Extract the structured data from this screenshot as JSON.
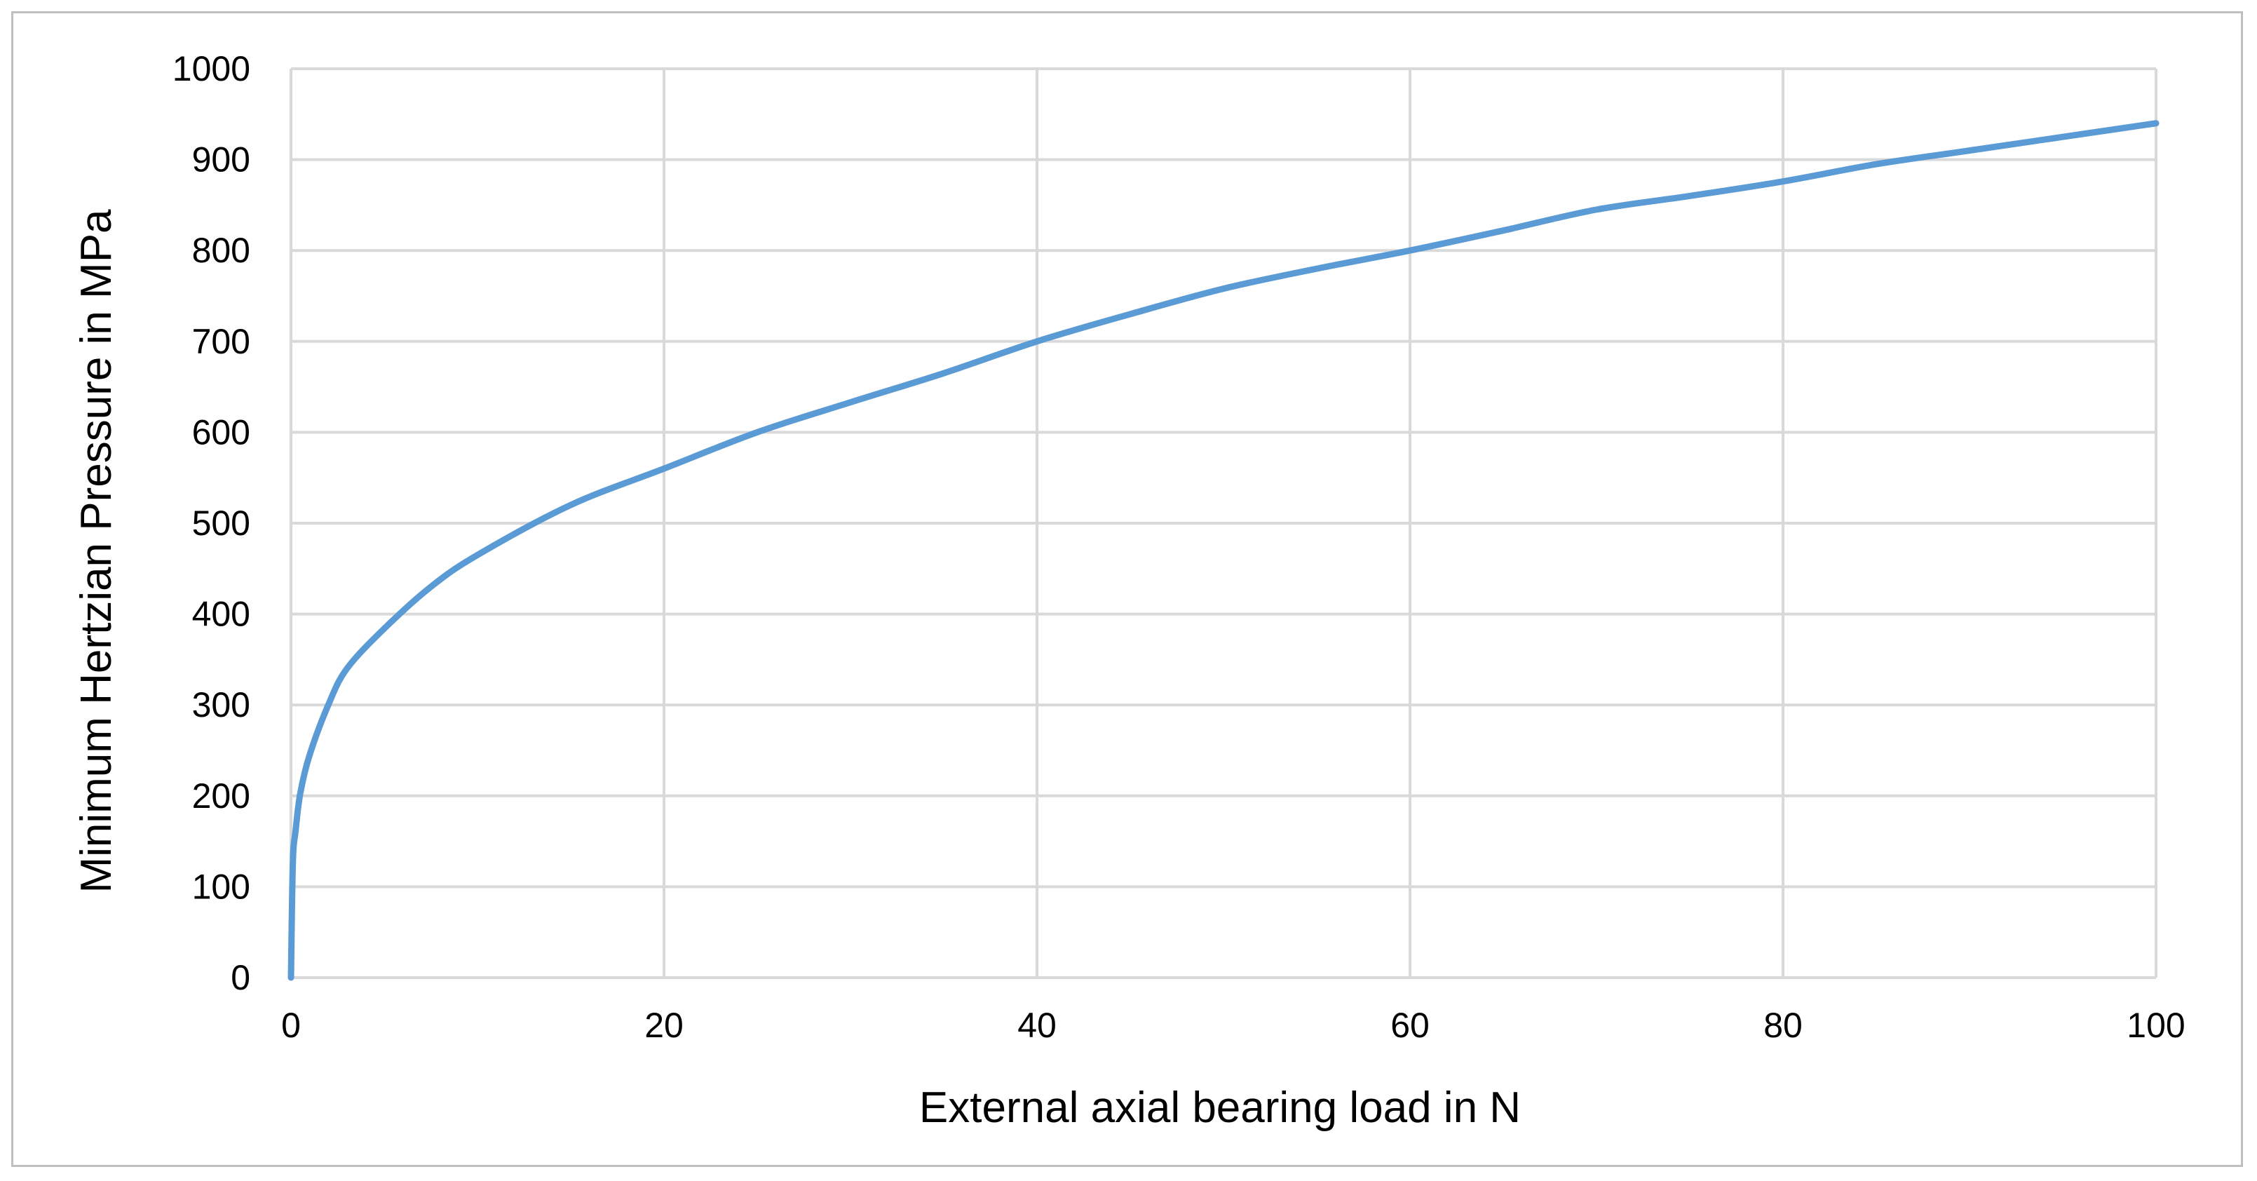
{
  "chart_data": {
    "type": "line",
    "title": "",
    "xlabel": "External axial bearing load in N",
    "ylabel": "Minimum Hertzian Pressure in MPa",
    "xlim": [
      0,
      100
    ],
    "ylim": [
      0,
      1000
    ],
    "x_ticks": [
      "0",
      "20",
      "40",
      "60",
      "80",
      "100"
    ],
    "y_ticks": [
      "0",
      "100",
      "200",
      "300",
      "400",
      "500",
      "600",
      "700",
      "800",
      "900",
      "1000"
    ],
    "grid": true,
    "legend": "none",
    "series": [
      {
        "color": "#5b9bd5",
        "x": [
          0,
          0.1,
          0.25,
          0.5,
          1,
          2,
          3,
          5,
          7.5,
          10,
          15,
          20,
          25,
          30,
          35,
          40,
          45,
          50,
          55,
          60,
          65,
          70,
          75,
          80,
          85,
          90,
          95,
          100
        ],
        "y": [
          0,
          126,
          162,
          203,
          245,
          300,
          340,
          384,
          430,
          465,
          520,
          560,
          600,
          633,
          665,
          700,
          730,
          758,
          780,
          800,
          822,
          845,
          860,
          876,
          895,
          910,
          925,
          940
        ]
      }
    ]
  }
}
